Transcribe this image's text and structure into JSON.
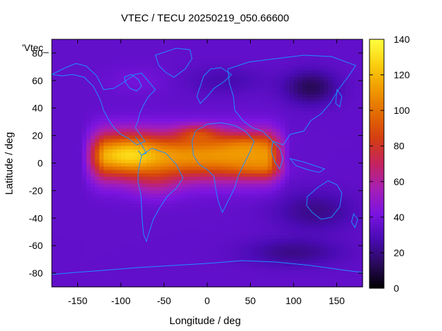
{
  "chart_data": {
    "type": "heatmap",
    "title": "VTEC / TECU 20250219_050.66600",
    "xlabel": "Longitude / deg",
    "ylabel": "Latitude / deg",
    "legend_entry": "'Vtec_",
    "xlim": [
      -180,
      180
    ],
    "ylim": [
      -90,
      90
    ],
    "x_ticks": [
      -150,
      -100,
      -50,
      0,
      50,
      100,
      150
    ],
    "y_ticks": [
      -80,
      -60,
      -40,
      -20,
      0,
      20,
      40,
      60,
      80
    ],
    "colorbar": {
      "range": [
        0,
        140
      ],
      "ticks": [
        0,
        20,
        40,
        60,
        80,
        100,
        120,
        140
      ],
      "palette": [
        "#000000",
        "#2b0a5e",
        "#4a0bb4",
        "#7b14e0",
        "#a61fb5",
        "#c4245f",
        "#d33d12",
        "#e36a00",
        "#f09a00",
        "#fbd010",
        "#ffff40"
      ]
    },
    "grid": false,
    "coastline_color": "#1e90ff",
    "background_level": 35,
    "features": [
      {
        "type": "crest",
        "lon_min": -145,
        "lon_max": 95,
        "lat_center": 5,
        "lat_sigma": 17,
        "value": 75
      },
      {
        "type": "blob",
        "lon": -90,
        "lat": 8,
        "sigma_lon": 30,
        "sigma_lat": 14,
        "value": 20
      },
      {
        "type": "blob",
        "lon": -60,
        "lat": -15,
        "sigma_lon": 28,
        "sigma_lat": 12,
        "value": 14
      },
      {
        "type": "blob",
        "lon": -10,
        "lat": 22,
        "sigma_lon": 24,
        "sigma_lat": 6,
        "value": 26
      },
      {
        "type": "blob",
        "lon": 45,
        "lat": 15,
        "sigma_lon": 35,
        "sigma_lat": 7,
        "value": 12
      },
      {
        "type": "blob",
        "lon": 60,
        "lat": -5,
        "sigma_lon": 35,
        "sigma_lat": 6,
        "value": 10
      },
      {
        "type": "blob",
        "lon": 20,
        "lat": 60,
        "sigma_lon": 45,
        "sigma_lat": 10,
        "value": -8
      },
      {
        "type": "blob",
        "lon": 120,
        "lat": 55,
        "sigma_lon": 30,
        "sigma_lat": 12,
        "value": -22
      },
      {
        "type": "blob",
        "lon": 125,
        "lat": -35,
        "sigma_lon": 45,
        "sigma_lat": 14,
        "value": -14
      },
      {
        "type": "blob",
        "lon": 100,
        "lat": -65,
        "sigma_lon": 55,
        "sigma_lat": 10,
        "value": -14
      },
      {
        "type": "blob",
        "lon": -80,
        "lat": 60,
        "sigma_lon": 35,
        "sigma_lat": 10,
        "value": 5
      }
    ]
  }
}
